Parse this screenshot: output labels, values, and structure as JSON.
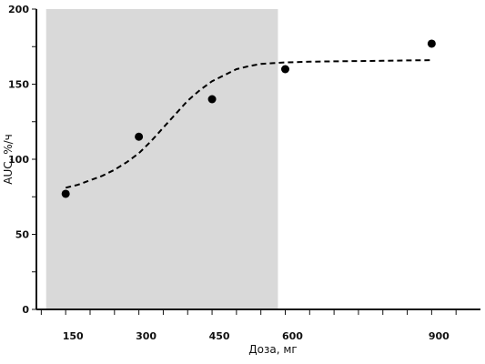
{
  "chart_data": {
    "type": "scatter",
    "title": "",
    "xlabel": "Доза, мг",
    "ylabel": "AUC, %/ч",
    "xlim": [
      90,
      1000
    ],
    "ylim": [
      0,
      200
    ],
    "x_ticks": [
      150,
      300,
      450,
      600,
      900
    ],
    "y_ticks": [
      0,
      50,
      100,
      150,
      200
    ],
    "grid": false,
    "legend": "none",
    "shaded_region": {
      "x_start": 110,
      "x_end": 585,
      "color": "#d9d9d9"
    },
    "series": [
      {
        "type": "scatter",
        "x": [
          150,
          300,
          450,
          600,
          900
        ],
        "y": [
          77,
          115,
          140,
          160,
          177
        ],
        "color": "#000000"
      },
      {
        "type": "line",
        "style": "dashed",
        "color": "#000000",
        "x": [
          150,
          175,
          200,
          225,
          250,
          275,
          300,
          325,
          350,
          375,
          400,
          425,
          450,
          475,
          500,
          525,
          550,
          575,
          600,
          650,
          700,
          750,
          800,
          850,
          900
        ],
        "y": [
          81,
          83,
          86,
          89,
          93,
          98,
          104,
          112,
          121,
          130,
          139,
          146,
          152,
          156,
          160,
          162,
          163.5,
          164,
          164.5,
          165,
          165.2,
          165.4,
          165.6,
          165.8,
          166
        ]
      }
    ]
  }
}
